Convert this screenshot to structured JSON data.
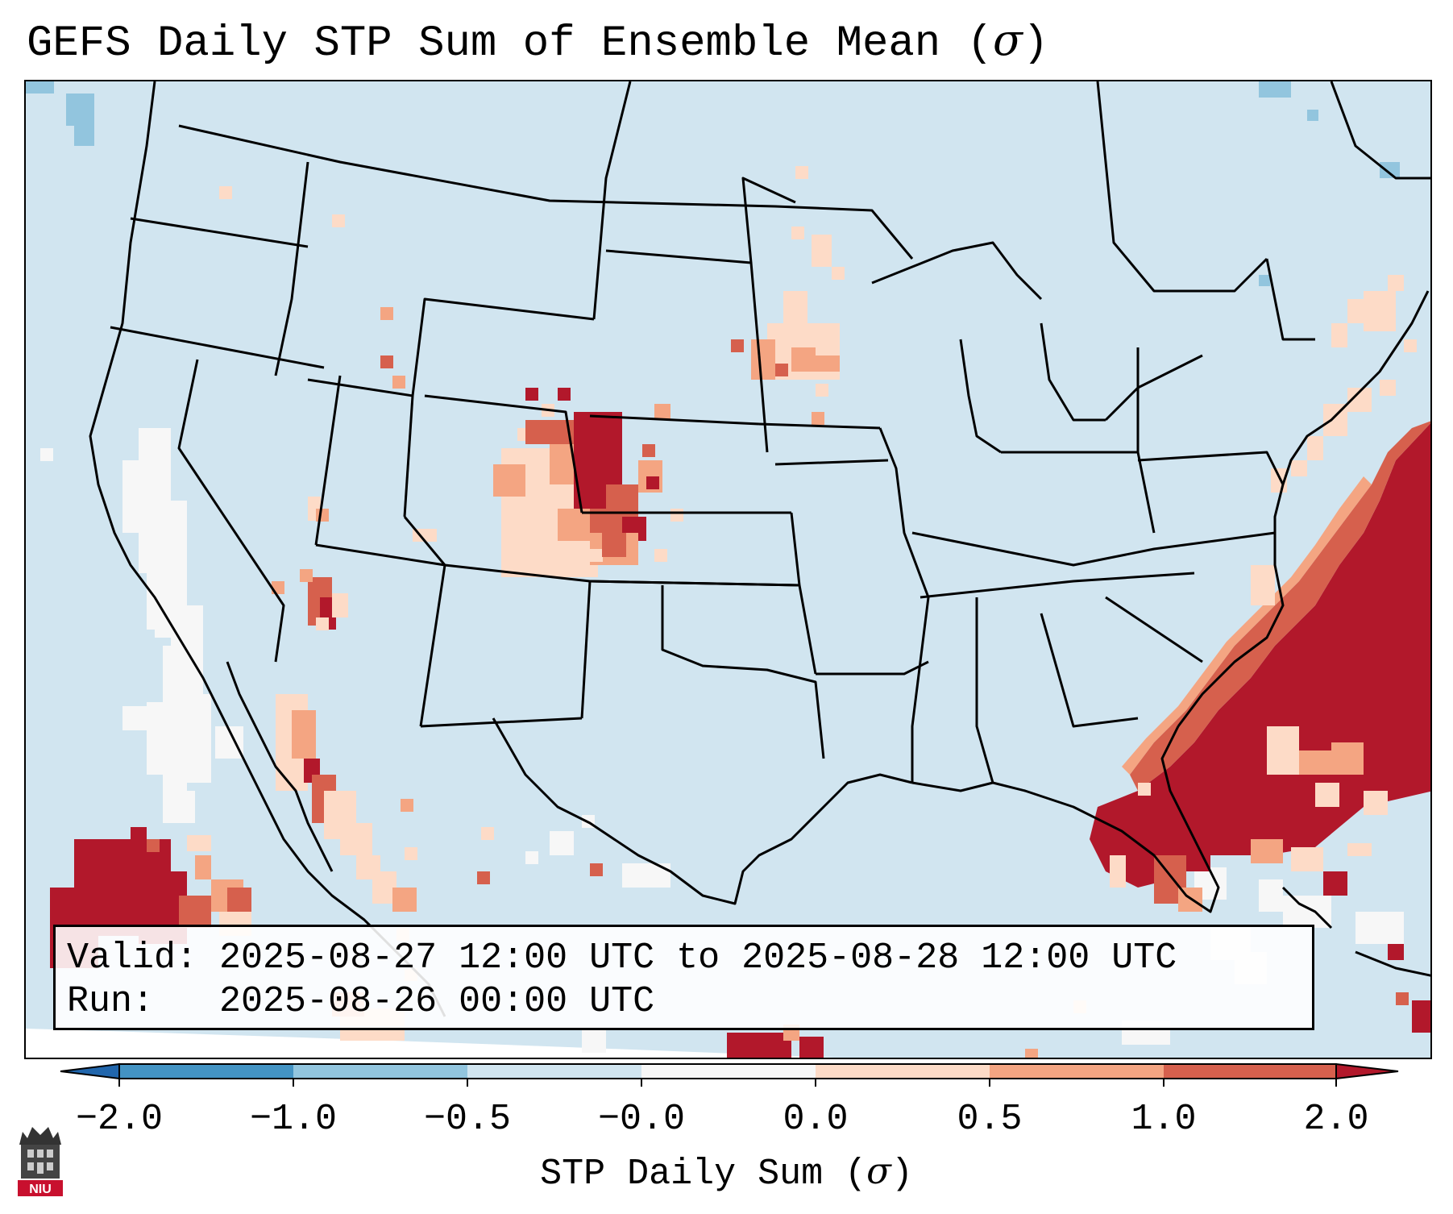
{
  "title": {
    "text": "GEFS Daily STP Sum of Ensemble Mean (",
    "sigma": "σ",
    "close": ")"
  },
  "map": {
    "name": "Contiguous United States with northern Mexico, southern Canada and western Atlantic",
    "background_color": "#d1e5f0",
    "out_of_domain_color": "#ffffff",
    "regions_of_note": [
      {
        "area": "Eastern Colorado / western Kansas / southwestern Nebraska",
        "level": "> 2.0"
      },
      {
        "area": "Southern Minnesota",
        "level": "0.0 to 1.0"
      },
      {
        "area": "Western Atlantic east of Florida and the Carolinas",
        "level": "> 2.0"
      },
      {
        "area": "Eastern Pacific southwest of Baja California",
        "level": "> 2.0"
      },
      {
        "area": "Southern Nevada / western Arizona",
        "level": "0.5 to > 2.0"
      },
      {
        "area": "Gulf of California coast",
        "level": "0.0 to > 2.0"
      },
      {
        "area": "Offshore California",
        "level": "-0.5 to 0.0"
      }
    ]
  },
  "info": {
    "valid_label": "Valid:",
    "valid_value": "2025-08-27 12:00 UTC to 2025-08-28 12:00 UTC",
    "run_label": "Run:",
    "run_value": "2025-08-26 00:00 UTC"
  },
  "colorbar": {
    "label_text": "STP Daily Sum (",
    "label_sigma": "σ",
    "label_close": ")",
    "ticks": [
      "−2.0",
      "−1.0",
      "−0.5",
      "−0.0",
      "0.0",
      "0.5",
      "1.0",
      "2.0"
    ],
    "bins": [
      {
        "range": "< -2.0",
        "color": "#2166ac"
      },
      {
        "range": "-2.0 to -1.0",
        "color": "#4393c3"
      },
      {
        "range": "-1.0 to -0.5",
        "color": "#92c5de"
      },
      {
        "range": "-0.5 to -0.0",
        "color": "#d1e5f0"
      },
      {
        "range": "-0.0 to 0.0",
        "color": "#f7f7f7"
      },
      {
        "range": "0.0 to 0.5",
        "color": "#fddbc7"
      },
      {
        "range": "0.5 to 1.0",
        "color": "#f4a582"
      },
      {
        "range": "1.0 to 2.0",
        "color": "#d6604d"
      },
      {
        "range": "> 2.0",
        "color": "#b2182b"
      }
    ]
  },
  "logo": {
    "text": "NIU"
  }
}
